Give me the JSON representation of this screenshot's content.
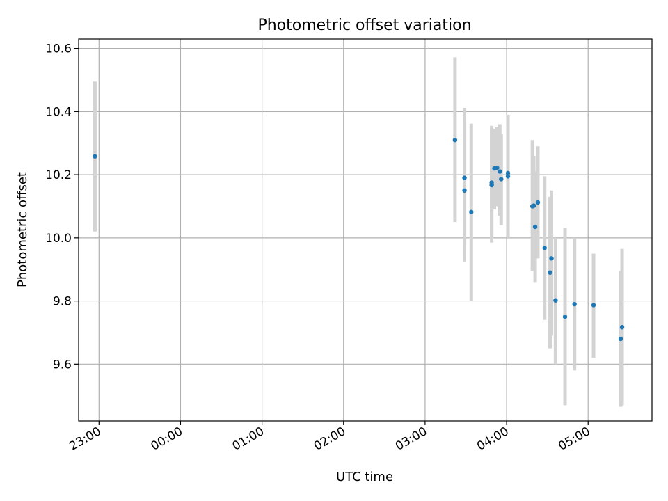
{
  "chart_data": {
    "type": "scatter",
    "title": "Photometric offset variation",
    "xlabel": "UTC time",
    "ylabel": "Photometric offset",
    "x_unit": "UTC clock time (HH:MM), night spanning midnight",
    "xlim": [
      "22:45",
      "05:47"
    ],
    "ylim": [
      9.42,
      10.63
    ],
    "x_ticks": [
      "23:00",
      "00:00",
      "01:00",
      "02:00",
      "03:00",
      "04:00",
      "05:00"
    ],
    "y_ticks": [
      9.6,
      9.8,
      10.0,
      10.2,
      10.4,
      10.6
    ],
    "y_tick_labels": [
      "9.6",
      "9.8",
      "10.0",
      "10.2",
      "10.4",
      "10.6"
    ],
    "grid": true,
    "marker_color": "#1f77b4",
    "errorbar_color": "#d3d3d3",
    "series": [
      {
        "points": [
          {
            "t": "22:57",
            "y": 10.258,
            "lo": 10.02,
            "hi": 10.495
          },
          {
            "t": "03:22",
            "y": 10.31,
            "lo": 10.05,
            "hi": 10.572
          },
          {
            "t": "03:29",
            "y": 10.15,
            "lo": 9.925,
            "hi": 10.38
          },
          {
            "t": "03:29",
            "y": 10.19,
            "lo": 9.97,
            "hi": 10.412
          },
          {
            "t": "03:34",
            "y": 10.082,
            "lo": 9.8,
            "hi": 10.362
          },
          {
            "t": "03:49",
            "y": 10.167,
            "lo": 9.985,
            "hi": 10.355
          },
          {
            "t": "03:49",
            "y": 10.175,
            "lo": 10.0,
            "hi": 10.345
          },
          {
            "t": "03:51",
            "y": 10.22,
            "lo": 10.09,
            "hi": 10.345
          },
          {
            "t": "03:53",
            "y": 10.222,
            "lo": 10.1,
            "hi": 10.35
          },
          {
            "t": "03:55",
            "y": 10.21,
            "lo": 10.07,
            "hi": 10.36
          },
          {
            "t": "03:56",
            "y": 10.186,
            "lo": 10.04,
            "hi": 10.33
          },
          {
            "t": "04:01",
            "y": 10.205,
            "lo": 10.0,
            "hi": 10.39
          },
          {
            "t": "04:01",
            "y": 10.195,
            "lo": 10.06,
            "hi": 10.37
          },
          {
            "t": "04:19",
            "y": 10.1,
            "lo": 9.895,
            "hi": 10.31
          },
          {
            "t": "04:20",
            "y": 10.102,
            "lo": 9.9,
            "hi": 10.26
          },
          {
            "t": "04:21",
            "y": 10.035,
            "lo": 9.86,
            "hi": 10.21
          },
          {
            "t": "04:23",
            "y": 10.112,
            "lo": 9.935,
            "hi": 10.29
          },
          {
            "t": "04:28",
            "y": 9.968,
            "lo": 9.74,
            "hi": 10.195
          },
          {
            "t": "04:32",
            "y": 9.89,
            "lo": 9.65,
            "hi": 10.13
          },
          {
            "t": "04:33",
            "y": 9.935,
            "lo": 9.69,
            "hi": 10.15
          },
          {
            "t": "04:36",
            "y": 9.802,
            "lo": 9.6,
            "hi": 10.0
          },
          {
            "t": "04:43",
            "y": 9.75,
            "lo": 9.47,
            "hi": 10.032
          },
          {
            "t": "04:50",
            "y": 9.79,
            "lo": 9.58,
            "hi": 10.0
          },
          {
            "t": "05:04",
            "y": 9.787,
            "lo": 9.62,
            "hi": 9.95
          },
          {
            "t": "05:24",
            "y": 9.68,
            "lo": 9.465,
            "hi": 9.895
          },
          {
            "t": "05:25",
            "y": 9.717,
            "lo": 9.47,
            "hi": 9.965
          }
        ]
      }
    ]
  }
}
